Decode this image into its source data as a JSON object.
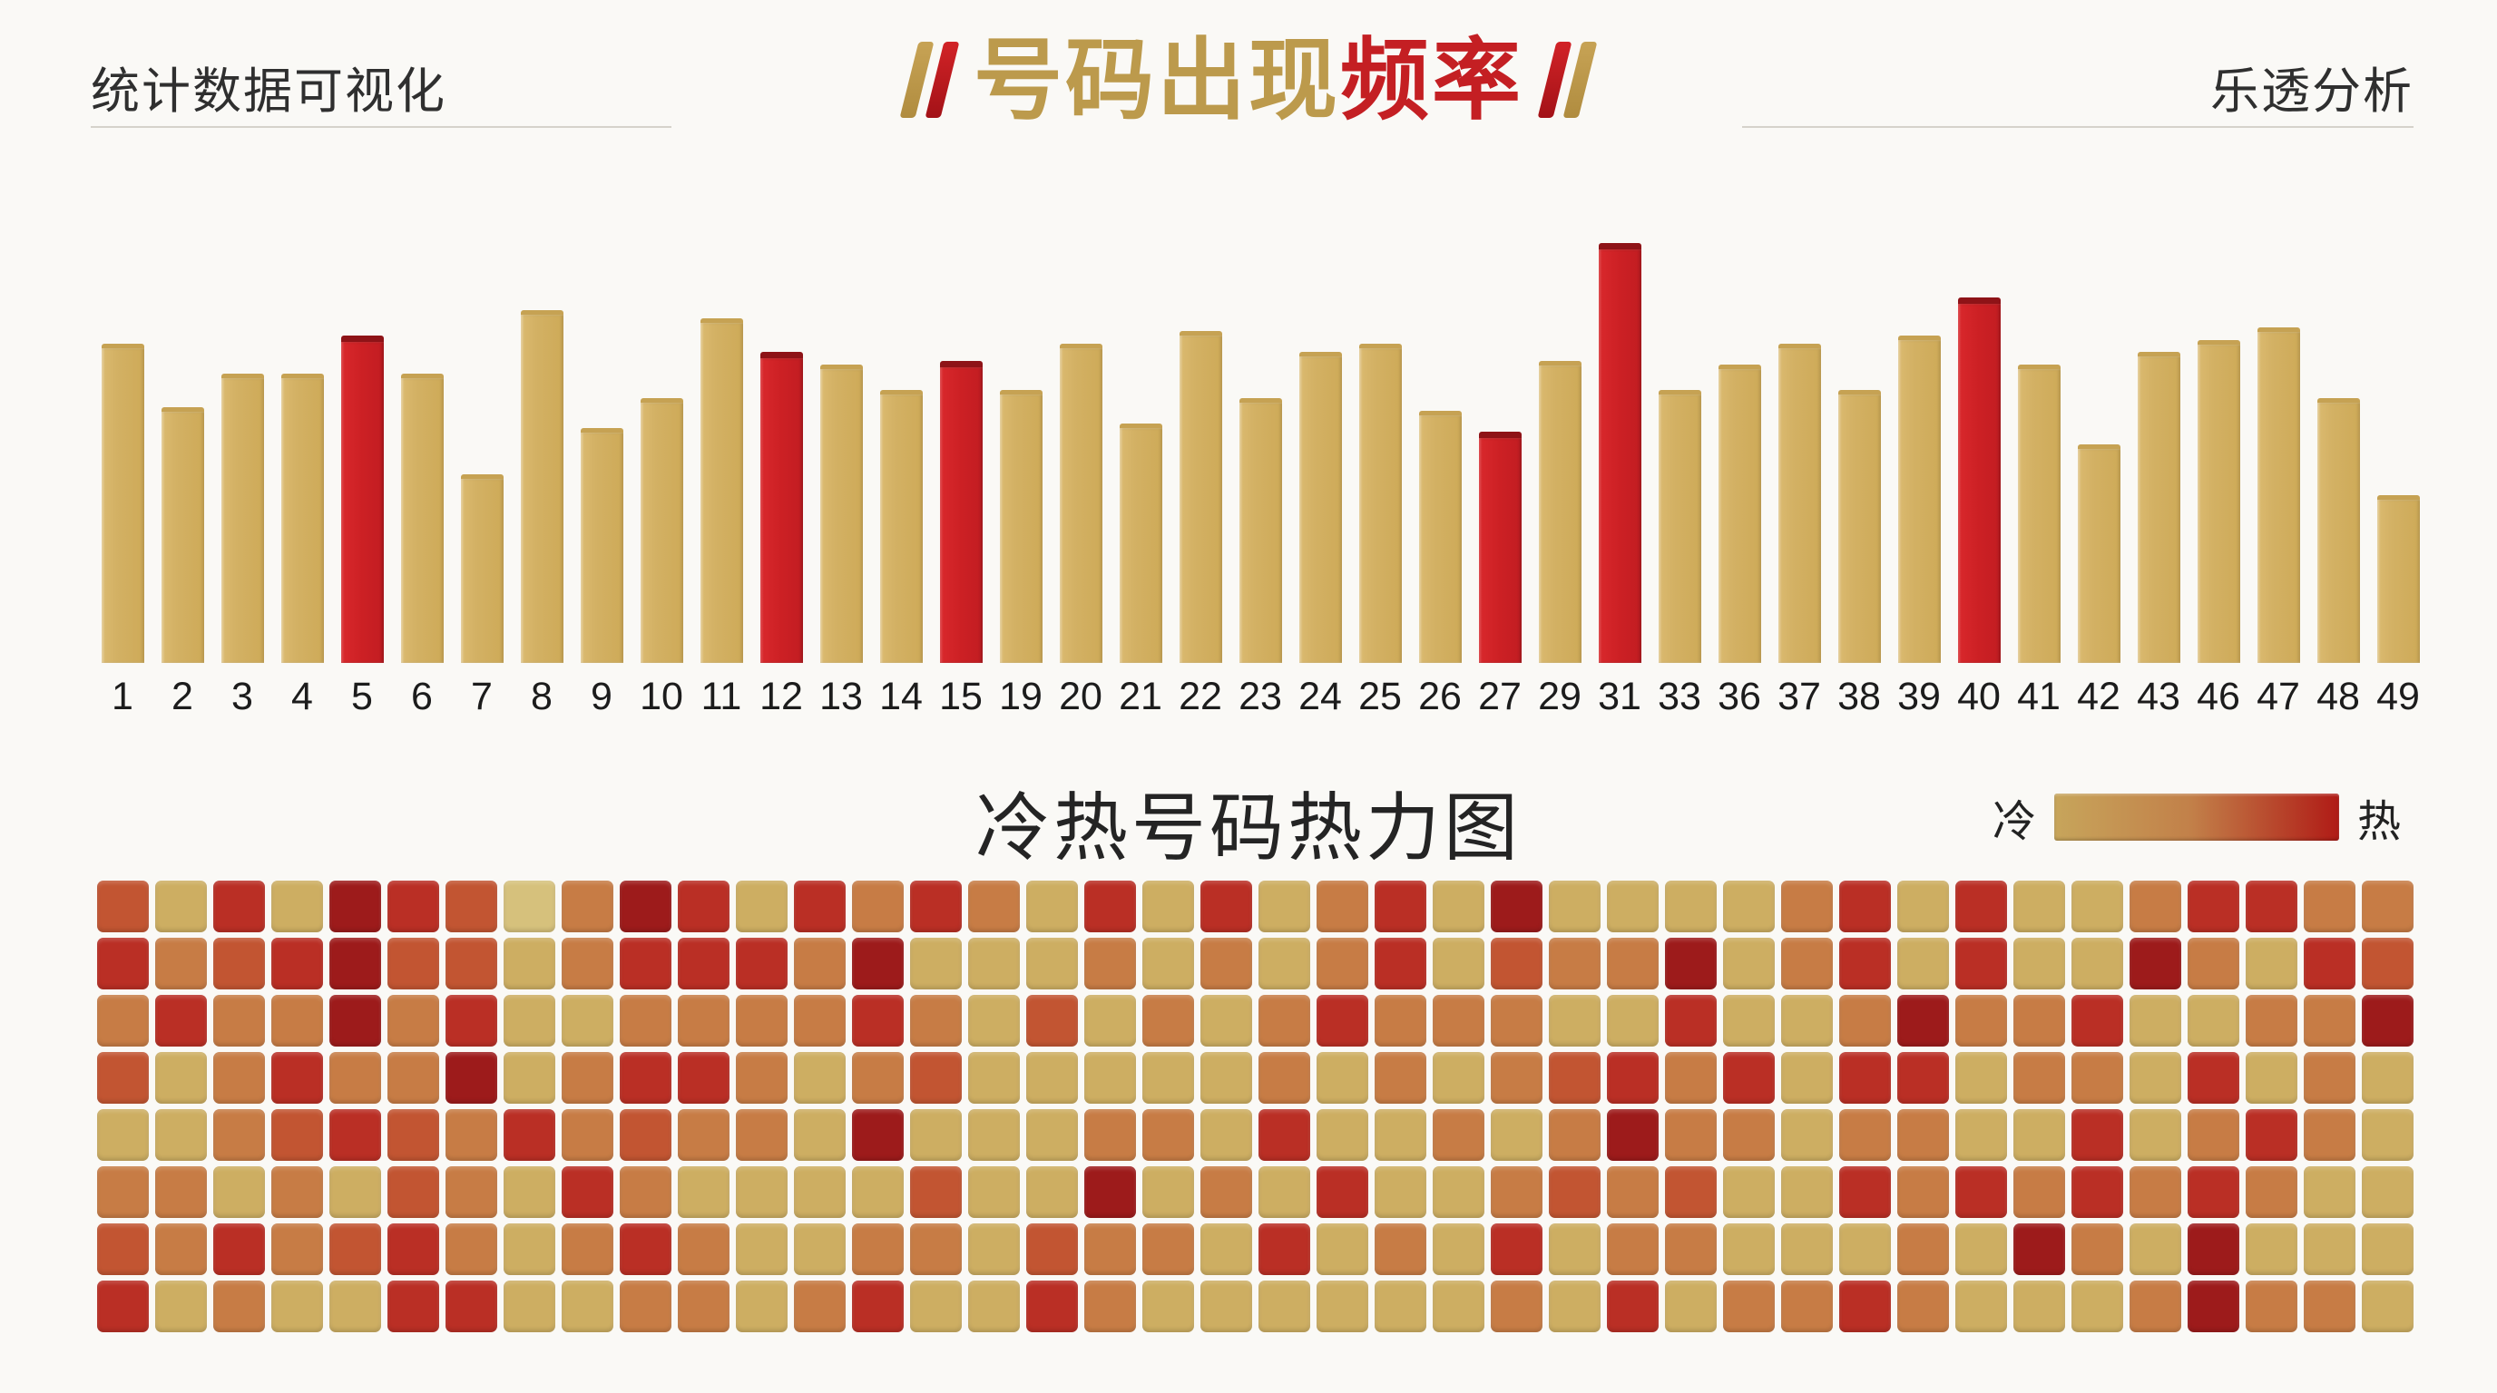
{
  "header": {
    "left_title": "统计数据可视化",
    "right_title": "乐透分析"
  },
  "title": {
    "gold_text": "号码出现",
    "red_text": "频率",
    "gold_color": "#BC9A4C",
    "red_color": "#C41F23"
  },
  "heatmap_section": {
    "title": "冷热号码热力图",
    "legend_cold": "冷",
    "legend_hot": "热",
    "legend_gradient": [
      "#C7A55B",
      "#B01B16"
    ]
  },
  "chart_data": [
    {
      "type": "bar",
      "title": "号码出现频率",
      "categories": [
        "1",
        "2",
        "3",
        "4",
        "5",
        "6",
        "7",
        "8",
        "9",
        "10",
        "11",
        "12",
        "13",
        "14",
        "15",
        "19",
        "20",
        "21",
        "22",
        "23",
        "24",
        "25",
        "26",
        "27",
        "29",
        "31",
        "33",
        "36",
        "37",
        "38",
        "39",
        "40",
        "41",
        "42",
        "43",
        "46",
        "47",
        "48",
        "49"
      ],
      "values": [
        76,
        61,
        69,
        69,
        78,
        69,
        45,
        84,
        56,
        63,
        82,
        74,
        71,
        65,
        72,
        65,
        76,
        57,
        79,
        63,
        74,
        76,
        60,
        55,
        72,
        100,
        65,
        71,
        76,
        65,
        78,
        87,
        71,
        52,
        74,
        77,
        80,
        63,
        40
      ],
      "hot_numbers": [
        "5",
        "12",
        "15",
        "27",
        "31",
        "40"
      ],
      "hot_indexes": [
        4,
        11,
        14,
        23,
        25,
        31
      ],
      "bar_color_normal": "#D2AF60",
      "bar_color_hot": "#CB2025",
      "ylim": [
        0,
        100
      ],
      "grid": false,
      "note": "relative frequency, no numeric axis shown"
    },
    {
      "type": "heatmap",
      "title": "冷热号码热力图",
      "rows": 8,
      "cols": 40,
      "legend": {
        "cold": "冷",
        "hot": "热"
      },
      "palette": [
        "#D6C17C",
        "#CDAE62",
        "#C77C45",
        "#C25532",
        "#BA2F25",
        "#9D1B1B"
      ],
      "palette_meaning": "0=coldest(gold) .. 5=hottest(dark red)",
      "matrix": [
        [
          3,
          1,
          4,
          1,
          5,
          4,
          3,
          0,
          2,
          5,
          4,
          1,
          4,
          2,
          4,
          2,
          1,
          4,
          1,
          4,
          1,
          2,
          4,
          1,
          5,
          1,
          1,
          1,
          1,
          2,
          4,
          1,
          4,
          1,
          1,
          2,
          4,
          4,
          2,
          2
        ],
        [
          4,
          2,
          3,
          4,
          5,
          3,
          3,
          1,
          2,
          4,
          4,
          4,
          2,
          5,
          1,
          1,
          1,
          2,
          1,
          2,
          1,
          2,
          4,
          1,
          3,
          2,
          2,
          5,
          1,
          2,
          4,
          1,
          4,
          1,
          1,
          5,
          2,
          1,
          4,
          3
        ],
        [
          2,
          4,
          2,
          2,
          5,
          2,
          4,
          1,
          1,
          2,
          2,
          2,
          2,
          4,
          2,
          1,
          3,
          1,
          2,
          1,
          2,
          4,
          2,
          2,
          2,
          1,
          1,
          4,
          1,
          1,
          2,
          5,
          2,
          2,
          4,
          1,
          1,
          2,
          2,
          5
        ],
        [
          3,
          1,
          2,
          4,
          2,
          2,
          5,
          1,
          2,
          4,
          4,
          2,
          1,
          2,
          3,
          1,
          1,
          1,
          1,
          1,
          2,
          1,
          2,
          1,
          2,
          3,
          4,
          2,
          4,
          1,
          4,
          4,
          1,
          2,
          2,
          1,
          4,
          1,
          2,
          1
        ],
        [
          1,
          1,
          2,
          3,
          4,
          3,
          2,
          4,
          2,
          3,
          2,
          2,
          1,
          5,
          1,
          1,
          1,
          2,
          2,
          1,
          4,
          1,
          1,
          2,
          1,
          2,
          5,
          2,
          2,
          1,
          2,
          2,
          1,
          1,
          4,
          1,
          2,
          4,
          2,
          1
        ],
        [
          2,
          2,
          1,
          2,
          1,
          3,
          2,
          1,
          4,
          2,
          1,
          1,
          1,
          1,
          3,
          1,
          1,
          5,
          1,
          2,
          1,
          4,
          1,
          1,
          2,
          3,
          2,
          3,
          1,
          1,
          4,
          2,
          4,
          2,
          4,
          2,
          4,
          2,
          1,
          1
        ],
        [
          3,
          2,
          4,
          2,
          3,
          4,
          2,
          1,
          2,
          4,
          2,
          1,
          1,
          2,
          2,
          1,
          3,
          2,
          2,
          1,
          4,
          1,
          2,
          1,
          4,
          1,
          2,
          2,
          1,
          1,
          1,
          2,
          1,
          5,
          2,
          1,
          5,
          1,
          1,
          1
        ],
        [
          4,
          1,
          2,
          1,
          1,
          4,
          4,
          1,
          1,
          2,
          2,
          1,
          2,
          4,
          1,
          1,
          4,
          2,
          1,
          1,
          1,
          1,
          1,
          1,
          2,
          1,
          4,
          1,
          2,
          2,
          4,
          2,
          1,
          1,
          1,
          2,
          5,
          2,
          2,
          1
        ]
      ]
    }
  ]
}
